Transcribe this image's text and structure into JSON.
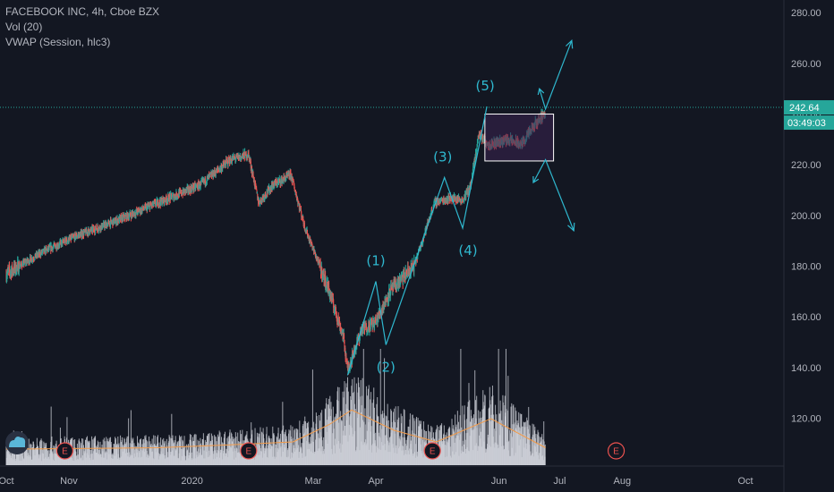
{
  "legend": {
    "title": "FACEBOOK INC, 4h, Cboe BZX",
    "vol": "Vol (20)",
    "vwap": "VWAP (Session, hlc3)"
  },
  "colors": {
    "background": "#131722",
    "up": "#26a69a",
    "down": "#ef5350",
    "annotation": "#2fb8cf",
    "vol_ma": "#f29b4a",
    "volume": "#d1d4dc",
    "event": "#f05350",
    "box_fill": "#3b2350",
    "price_line": "#26a69a"
  },
  "chart_data": {
    "type": "candlestick",
    "y_axis": {
      "ticks": [
        "280.00",
        "260.00",
        "240.00",
        "220.00",
        "200.00",
        "180.00",
        "160.00",
        "140.00",
        "120.00"
      ],
      "ylim": [
        101.5,
        285
      ]
    },
    "x_axis": {
      "labels": [
        "Oct",
        "Nov",
        "2020",
        "Mar",
        "Apr",
        "Jun",
        "Jul",
        "Aug",
        "Oct"
      ]
    },
    "last_price": {
      "value": 242.64,
      "label": "242.64",
      "countdown": "03:49:03"
    },
    "price_path": [
      {
        "date": "2019-10-01",
        "price": 177
      },
      {
        "date": "2019-10-20",
        "price": 186
      },
      {
        "date": "2019-11-05",
        "price": 192
      },
      {
        "date": "2019-11-25",
        "price": 198
      },
      {
        "date": "2019-12-15",
        "price": 205
      },
      {
        "date": "2020-01-05",
        "price": 212
      },
      {
        "date": "2020-01-20",
        "price": 222
      },
      {
        "date": "2020-01-29",
        "price": 224
      },
      {
        "date": "2020-02-03",
        "price": 205
      },
      {
        "date": "2020-02-10",
        "price": 212
      },
      {
        "date": "2020-02-19",
        "price": 216
      },
      {
        "date": "2020-02-26",
        "price": 195
      },
      {
        "date": "2020-03-09",
        "price": 170
      },
      {
        "date": "2020-03-16",
        "price": 152
      },
      {
        "date": "2020-03-18",
        "price": 139
      },
      {
        "date": "2020-03-25",
        "price": 155
      },
      {
        "date": "2020-04-01",
        "price": 158
      },
      {
        "date": "2020-04-08",
        "price": 170
      },
      {
        "date": "2020-04-20",
        "price": 180
      },
      {
        "date": "2020-04-30",
        "price": 205
      },
      {
        "date": "2020-05-08",
        "price": 207
      },
      {
        "date": "2020-05-14",
        "price": 206
      },
      {
        "date": "2020-05-18",
        "price": 212
      },
      {
        "date": "2020-05-22",
        "price": 232
      },
      {
        "date": "2020-05-27",
        "price": 228
      },
      {
        "date": "2020-06-05",
        "price": 230
      },
      {
        "date": "2020-06-12",
        "price": 228
      },
      {
        "date": "2020-06-19",
        "price": 236
      },
      {
        "date": "2020-06-24",
        "price": 241
      }
    ],
    "volume_axis_max": 4.0,
    "volume_ma_path": [
      {
        "date": "2019-10-01",
        "value": 0.55
      },
      {
        "date": "2019-12-15",
        "value": 0.6
      },
      {
        "date": "2020-01-20",
        "value": 0.7
      },
      {
        "date": "2020-02-20",
        "value": 0.8
      },
      {
        "date": "2020-03-09",
        "value": 1.4
      },
      {
        "date": "2020-03-20",
        "value": 1.9
      },
      {
        "date": "2020-04-10",
        "value": 1.2
      },
      {
        "date": "2020-05-01",
        "value": 0.8
      },
      {
        "date": "2020-05-28",
        "value": 1.6
      },
      {
        "date": "2020-06-24",
        "value": 0.6
      }
    ],
    "event_markers": [
      {
        "label": "E",
        "date": "2019-10-30"
      },
      {
        "label": "E",
        "date": "2020-01-29"
      },
      {
        "label": "E",
        "date": "2020-04-29"
      },
      {
        "label": "E",
        "date": "2020-07-29"
      }
    ],
    "elliott_wave": {
      "points": [
        {
          "label": "",
          "date": "2020-03-18",
          "price": 137
        },
        {
          "label": "(1)",
          "date": "2020-04-01",
          "price": 174
        },
        {
          "label": "(2)",
          "date": "2020-04-06",
          "price": 149
        },
        {
          "label": "(3)",
          "date": "2020-05-05",
          "price": 215
        },
        {
          "label": "(4)",
          "date": "2020-05-14",
          "price": 195
        },
        {
          "label": "(5)",
          "date": "2020-05-26",
          "price": 243
        }
      ]
    },
    "consolidation_box": {
      "start": "2020-05-25",
      "end": "2020-06-28",
      "top": 240,
      "bottom": 221.5
    },
    "projections": {
      "bull": [
        {
          "date": "2020-06-21",
          "price": 250
        },
        {
          "date": "2020-06-24",
          "price": 242
        },
        {
          "date": "2020-07-07",
          "price": 269
        }
      ],
      "bear": [
        {
          "date": "2020-06-18",
          "price": 213
        },
        {
          "date": "2020-06-24",
          "price": 222
        },
        {
          "date": "2020-07-08",
          "price": 194
        }
      ]
    }
  }
}
